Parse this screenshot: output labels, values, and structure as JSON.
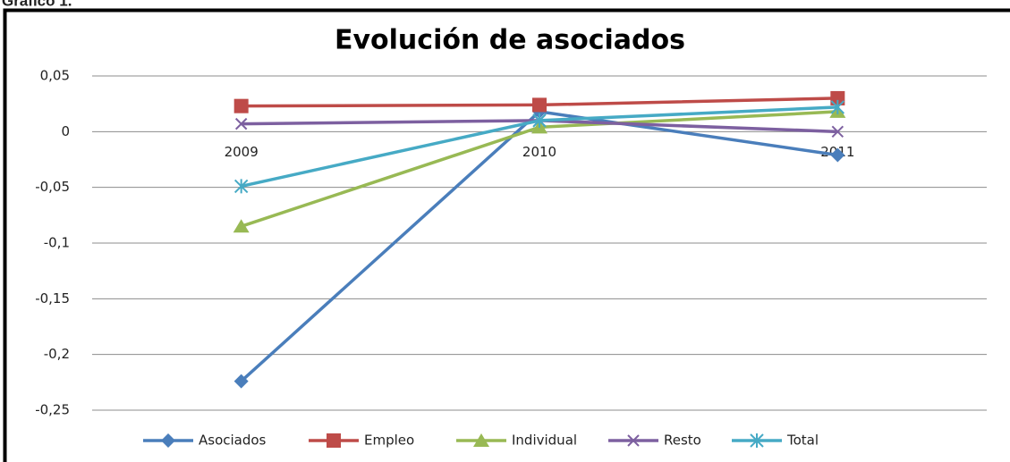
{
  "heading": "Gráfico 1.",
  "chart_data": {
    "type": "line",
    "title": "Evolución de asociados",
    "categories": [
      "2009",
      "2010",
      "2011"
    ],
    "series": [
      {
        "name": "Asociados",
        "color": "#4a7ebb",
        "marker": "diamond",
        "values": [
          -0.224,
          0.018,
          -0.021
        ]
      },
      {
        "name": "Empleo",
        "color": "#be4b48",
        "marker": "square",
        "values": [
          0.023,
          0.024,
          0.03
        ]
      },
      {
        "name": "Individual",
        "color": "#98b954",
        "marker": "triangle",
        "values": [
          -0.085,
          0.004,
          0.018
        ]
      },
      {
        "name": "Resto",
        "color": "#7d60a0",
        "marker": "x",
        "values": [
          0.007,
          0.01,
          0.0
        ]
      },
      {
        "name": "Total",
        "color": "#46aac5",
        "marker": "star",
        "values": [
          -0.049,
          0.01,
          0.022
        ]
      }
    ],
    "ylim": [
      -0.25,
      0.05
    ],
    "yticks": [
      {
        "value": 0.05,
        "label": "0,05"
      },
      0,
      {
        "value": -0.05,
        "label": "-0,05"
      },
      {
        "value": -0.1,
        "label": "-0,1"
      },
      {
        "value": -0.15,
        "label": "-0,15"
      },
      {
        "value": -0.2,
        "label": "-0,2"
      },
      {
        "value": -0.25,
        "label": "-0,25"
      }
    ],
    "grid": true,
    "legend": "bottom"
  }
}
